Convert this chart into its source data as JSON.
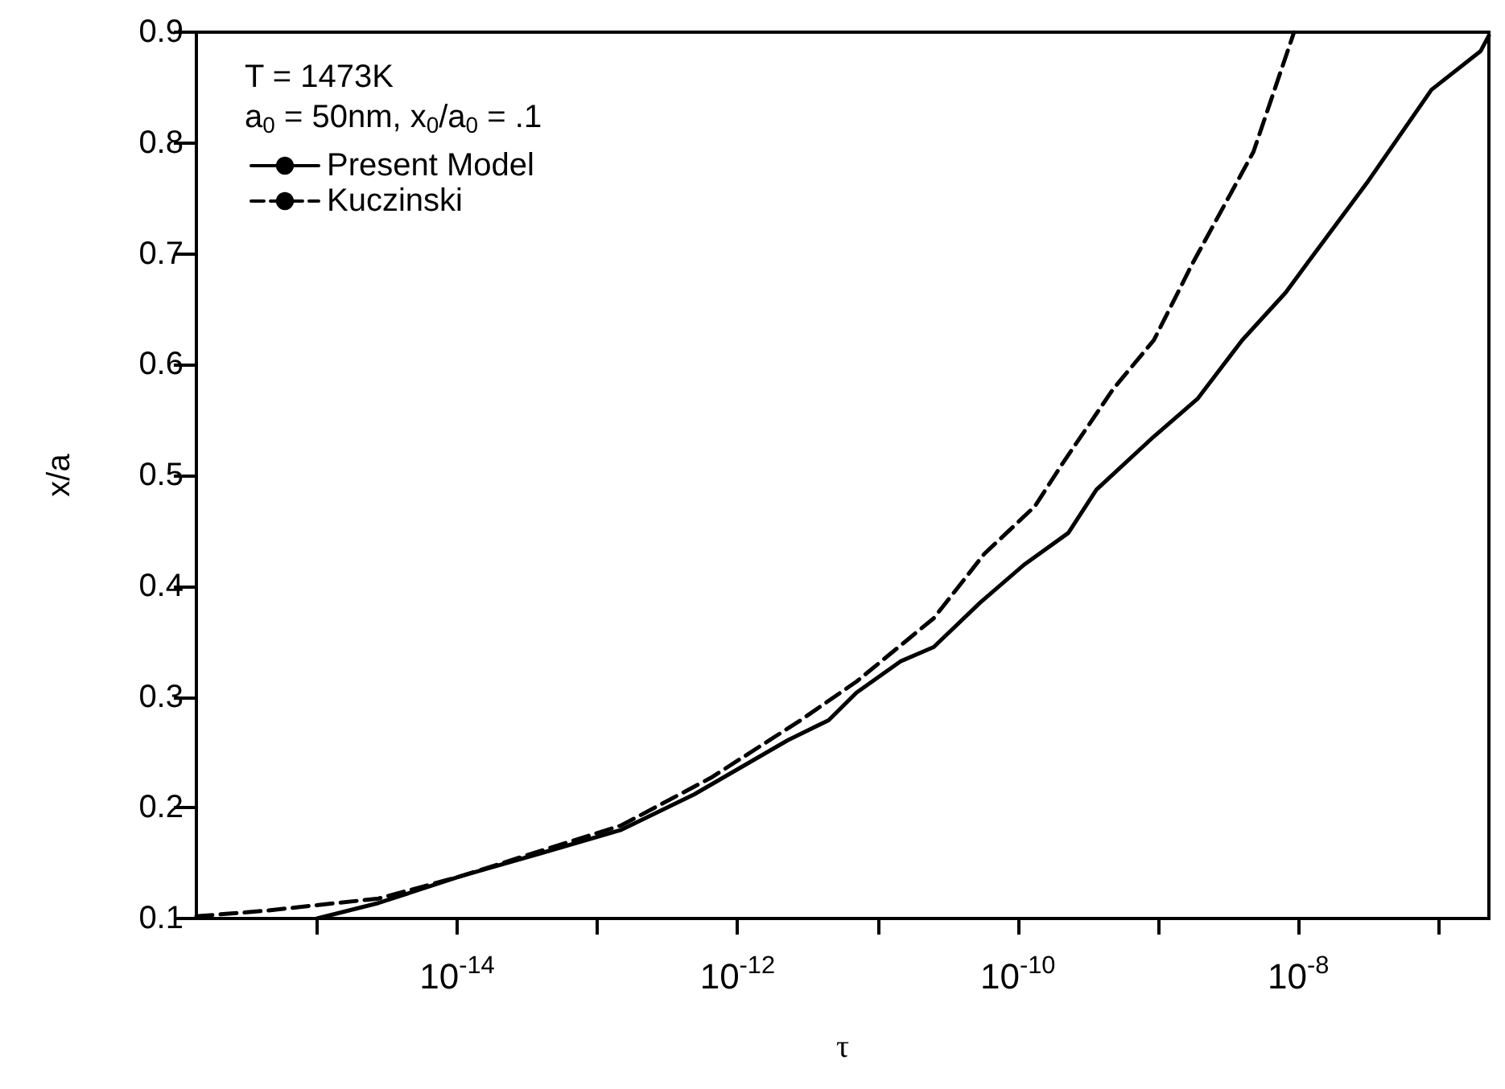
{
  "chart_data": {
    "type": "line",
    "xlabel": "τ",
    "ylabel": "x/a",
    "annotations": [
      "T = 1473K",
      "a$_{0}$ = 50nm, x$_{0}$/a$_{0}$ = .1"
    ],
    "log": "x",
    "grid": false,
    "legend": "top left",
    "marker": "none",
    "xlim": [
      1.38e-16,
      2.29e-07
    ],
    "xticks": [
      {
        "value": 1e-15,
        "label": null
      },
      {
        "value": 1e-14,
        "label": "10$^{-14}$"
      },
      {
        "value": 1e-13,
        "label": null
      },
      {
        "value": 1e-12,
        "label": "10$^{-12}$"
      },
      {
        "value": 1e-11,
        "label": null
      },
      {
        "value": 1e-10,
        "label": "10$^{-10}$"
      },
      {
        "value": 1e-09,
        "label": null
      },
      {
        "value": 1e-08,
        "label": "10$^{-8}$"
      },
      {
        "value": 1e-07,
        "label": null
      }
    ],
    "ylim": [
      0.1,
      0.9
    ],
    "yticks": [
      0.1,
      0.2,
      0.3,
      0.4,
      0.5,
      0.6,
      0.7,
      0.8,
      0.9
    ],
    "series": [
      {
        "name": "Present Model",
        "color": "#000000",
        "line_style": "solid",
        "x": [
          1e-15,
          2.75e-15,
          1.05e-14,
          3.98e-14,
          1.48e-13,
          4.9e-13,
          2.29e-12,
          4.47e-12,
          7.08e-12,
          1.45e-11,
          2.51e-11,
          5.37e-11,
          1.1e-10,
          2.29e-10,
          3.63e-10,
          9.33e-10,
          1.91e-09,
          3.98e-09,
          8.13e-09,
          1.2e-08,
          3.09e-08,
          8.91e-08,
          2e-07,
          2.29e-07
        ],
        "values": [
          0.1,
          0.114,
          0.138,
          0.159,
          0.18,
          0.212,
          0.261,
          0.279,
          0.304,
          0.332,
          0.345,
          0.385,
          0.419,
          0.448,
          0.487,
          0.535,
          0.569,
          0.622,
          0.665,
          0.694,
          0.764,
          0.848,
          0.883,
          0.897
        ]
      },
      {
        "name": "Kuczinski",
        "color": "#000000",
        "line_style": "dashed",
        "x": [
          1.38e-16,
          4.27e-16,
          2.75e-15,
          1.05e-14,
          1.48e-13,
          6.46e-13,
          2.82e-12,
          7.08e-12,
          2.51e-11,
          5.75e-11,
          1.32e-10,
          2.09e-10,
          4.79e-10,
          9.33e-10,
          1.74e-09,
          4.79e-09,
          9.33e-09
        ],
        "values": [
          0.102,
          0.107,
          0.118,
          0.138,
          0.184,
          0.227,
          0.279,
          0.314,
          0.371,
          0.429,
          0.472,
          0.511,
          0.578,
          0.622,
          0.69,
          0.792,
          0.9
        ]
      }
    ]
  }
}
